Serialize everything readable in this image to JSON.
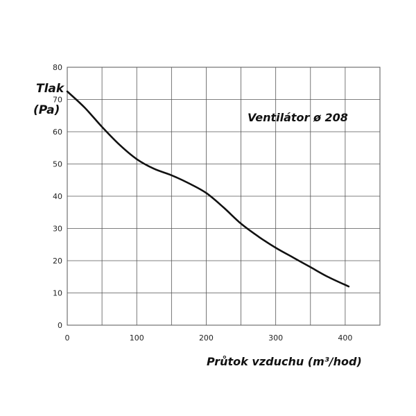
{
  "chart_data": {
    "type": "line",
    "title": "Ventilátor ø 208",
    "ylabel_line1": "Tlak",
    "ylabel_line2": "(Pa)",
    "xlabel": "Průtok vzduchu (m³/hod)",
    "xlim": [
      0,
      450
    ],
    "ylim": [
      0,
      80
    ],
    "x_ticks": [
      0,
      100,
      200,
      300,
      400
    ],
    "y_ticks": [
      0,
      10,
      20,
      30,
      40,
      50,
      60,
      70,
      80
    ],
    "x_grid_step": 50,
    "y_grid_step": 10,
    "grid": true,
    "series": [
      {
        "x": [
          0,
          25,
          50,
          75,
          100,
          125,
          150,
          175,
          200,
          225,
          250,
          275,
          300,
          325,
          350,
          375,
          405
        ],
        "values": [
          72.5,
          67.5,
          61.5,
          56.0,
          51.5,
          48.5,
          46.5,
          44.0,
          41.0,
          36.5,
          31.5,
          27.5,
          24.0,
          21.0,
          18.0,
          15.0,
          12.0
        ]
      }
    ]
  }
}
